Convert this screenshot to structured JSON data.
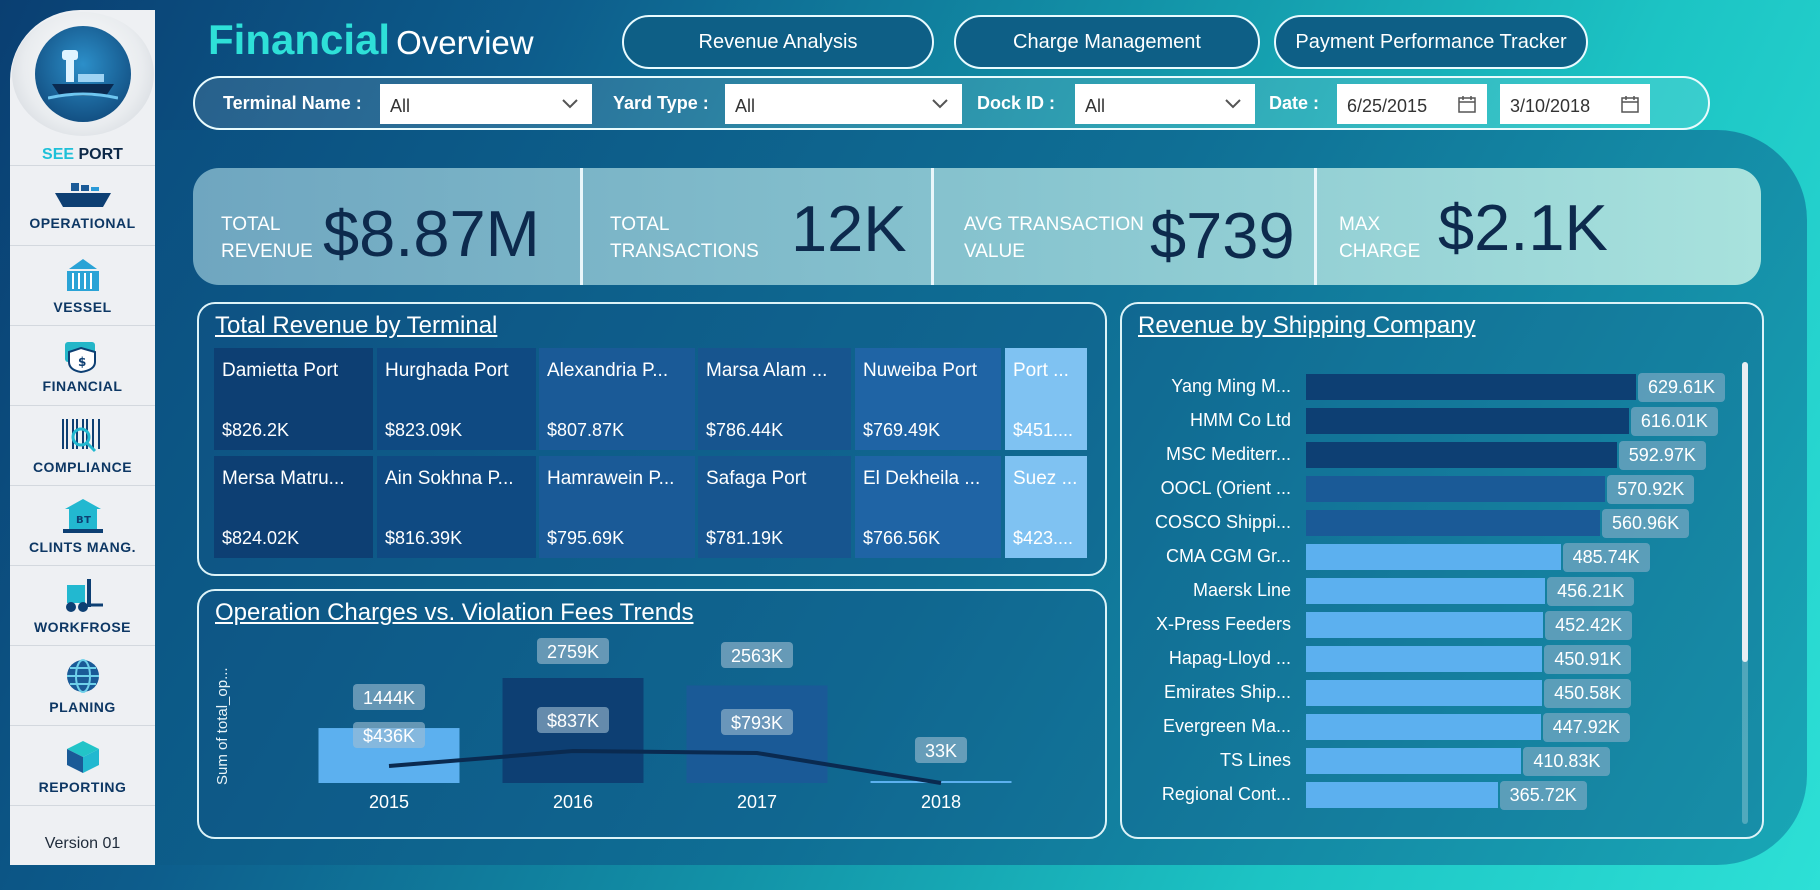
{
  "sidebar": {
    "brand_see": "SEE",
    "brand_port": "PORT",
    "version": "Version 01",
    "items": [
      {
        "label": "OPERATIONAL",
        "icon": "ship-icon"
      },
      {
        "label": "VESSEL",
        "icon": "container-icon"
      },
      {
        "label": "FINANCIAL",
        "icon": "money-icon"
      },
      {
        "label": "COMPLIANCE",
        "icon": "barcode-icon"
      },
      {
        "label": "CLINTS MANG.",
        "icon": "client-icon"
      },
      {
        "label": "WORKFROSE",
        "icon": "forklift-icon"
      },
      {
        "label": "PLANING",
        "icon": "globe-icon"
      },
      {
        "label": "REPORTING",
        "icon": "box-icon"
      }
    ]
  },
  "header": {
    "title_main": "Financial",
    "title_sub": "Overview",
    "nav": [
      "Revenue Analysis",
      "Charge Management",
      "Payment Performance Tracker"
    ]
  },
  "filters": {
    "terminal_label": "Terminal Name :",
    "terminal_value": "All",
    "yard_label": "Yard Type :",
    "yard_value": "All",
    "dock_label": "Dock ID :",
    "dock_value": "All",
    "date_label": "Date :",
    "date_from": "6/25/2015",
    "date_to": "3/10/2018"
  },
  "kpis": [
    {
      "label1": "TOTAL",
      "label2": "REVENUE",
      "value": "$8.87M"
    },
    {
      "label1": "TOTAL",
      "label2": "TRANSACTIONS",
      "value": "12K"
    },
    {
      "label1": "AVG TRANSACTION",
      "label2": "VALUE",
      "value": "$739"
    },
    {
      "label1": "MAX",
      "label2": "CHARGE",
      "value": "$2.1K"
    }
  ],
  "treemap": {
    "title": "Total Revenue by Terminal",
    "tiles": [
      {
        "name": "Damietta Port",
        "value": "$826.2K"
      },
      {
        "name": "Hurghada Port",
        "value": "$823.09K"
      },
      {
        "name": "Alexandria P...",
        "value": "$807.87K"
      },
      {
        "name": "Marsa Alam ...",
        "value": "$786.44K"
      },
      {
        "name": "Nuweiba Port",
        "value": "$769.49K"
      },
      {
        "name": "Port ...",
        "value": "$451...."
      },
      {
        "name": "Mersa Matru...",
        "value": "$824.02K"
      },
      {
        "name": "Ain Sokhna P...",
        "value": "$816.39K"
      },
      {
        "name": "Hamrawein P...",
        "value": "$795.69K"
      },
      {
        "name": "Safaga Port",
        "value": "$781.19K"
      },
      {
        "name": "El Dekheila ...",
        "value": "$766.56K"
      },
      {
        "name": "Suez ...",
        "value": "$423...."
      }
    ]
  },
  "combo": {
    "title": "Operation Charges vs. Violation Fees Trends",
    "ylabel": "Sum of total_op...",
    "years": [
      "2015",
      "2016",
      "2017",
      "2018"
    ],
    "bar_labels": [
      "1444K",
      "2759K",
      "2563K",
      "33K"
    ],
    "line_labels": [
      "$436K",
      "$837K",
      "$793K",
      ""
    ]
  },
  "shipping": {
    "title": "Revenue by Shipping Company"
  },
  "chart_data": [
    {
      "type": "bar",
      "title": "Revenue by Shipping Company",
      "orientation": "horizontal",
      "categories": [
        "Yang Ming M...",
        "HMM Co Ltd",
        "MSC Mediterr...",
        "OOCL (Orient ...",
        "COSCO Shippi...",
        "CMA CGM Gr...",
        "Maersk Line",
        "X-Press Feeders",
        "Hapag-Lloyd ...",
        "Emirates Ship...",
        "Evergreen Ma...",
        "TS Lines",
        "Regional Cont..."
      ],
      "values": [
        629.61,
        616.01,
        592.97,
        570.92,
        560.96,
        485.74,
        456.21,
        452.42,
        450.91,
        450.58,
        447.92,
        410.83,
        365.72
      ],
      "labels": [
        "629.61K",
        "616.01K",
        "592.97K",
        "570.92K",
        "560.96K",
        "485.74K",
        "456.21K",
        "452.42K",
        "450.91K",
        "450.58K",
        "447.92K",
        "410.83K",
        "365.72K"
      ],
      "colors": [
        "#0d3f73",
        "#0d3f73",
        "#0d3f73",
        "#1a5a97",
        "#1a5a97",
        "#5cb0ef",
        "#5cb0ef",
        "#5cb0ef",
        "#5cb0ef",
        "#5cb0ef",
        "#5cb0ef",
        "#5cb0ef",
        "#5cb0ef"
      ]
    },
    {
      "type": "bar",
      "title": "Operation Charges vs. Violation Fees Trends",
      "categories": [
        "2015",
        "2016",
        "2017",
        "2018"
      ],
      "series": [
        {
          "values": [
            1444,
            2759,
            2563,
            33
          ]
        },
        {
          "values": [
            436,
            837,
            793,
            60
          ]
        }
      ],
      "ylabel": "Sum of total_op..."
    }
  ]
}
